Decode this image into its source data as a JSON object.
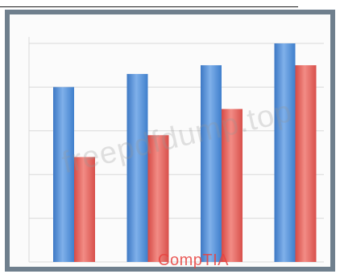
{
  "watermark_text": "freepdfdump.top",
  "brand_text": "CompTIA",
  "colors": {
    "series_blue": "#4f8fd8",
    "series_red": "#e9625c",
    "frame": "#6f7f8d",
    "grid": "#d9d9d9",
    "brand": "#e8423f"
  },
  "chart_data": {
    "type": "bar",
    "title": "",
    "xlabel": "",
    "ylabel": "",
    "categories": [
      "",
      "",
      "",
      ""
    ],
    "ylim": [
      0,
      5
    ],
    "grid": true,
    "legend": "none",
    "series": [
      {
        "color": "#4f8fd8",
        "values": [
          4.0,
          4.3,
          4.5,
          5.0
        ]
      },
      {
        "color": "#e9625c",
        "values": [
          2.4,
          2.9,
          3.5,
          4.5
        ]
      }
    ]
  }
}
